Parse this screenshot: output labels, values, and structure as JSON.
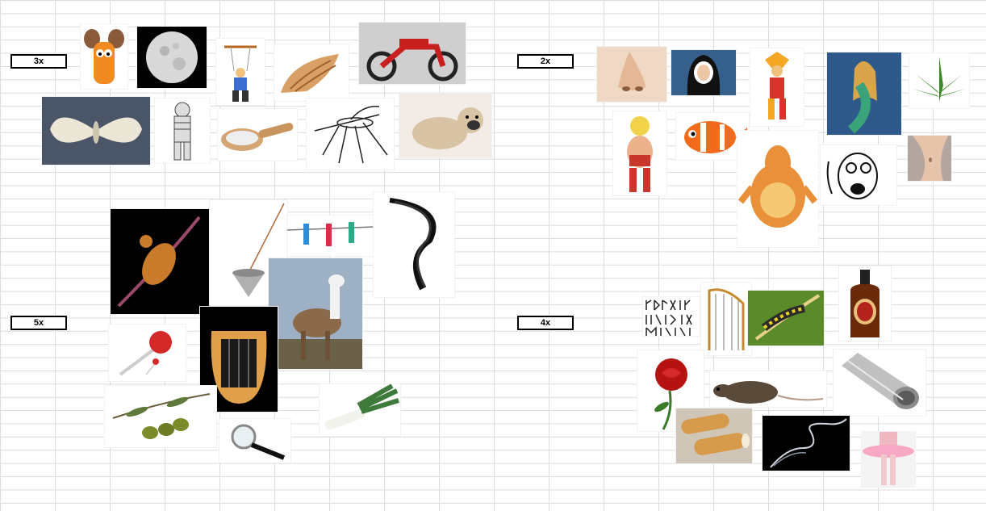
{
  "labels": {
    "three": "3x",
    "two": "2x",
    "five": "5x",
    "four": "4x"
  },
  "images": [
    "cartoon-mouse-icon",
    "full-moon-icon",
    "marionette-icon",
    "seashell-icon",
    "moped-icon",
    "moth-icon",
    "mummy-icon",
    "wooden-scoop-icon",
    "mosquito-icon",
    "pug-dog-icon",
    "louse-icon",
    "pendulum-icon",
    "clothespins-icon",
    "hair-strand-icon",
    "llama-icon",
    "lollipop-icon",
    "lyre-icon",
    "olives-icon",
    "magnifying-glass-icon",
    "leek-icon",
    "nose-icon",
    "nun-icon",
    "jester-icon",
    "mermaid-icon",
    "cannabis-leaf-icon",
    "cartoon-woman-icon",
    "clownfish-icon",
    "cartoon-animal-icon",
    "shocked-face-icon",
    "belly-icon",
    "runes-icon",
    "harp-icon",
    "caterpillar-icon",
    "rum-bottle-icon",
    "rose-icon",
    "rat-icon",
    "metal-tube-icon",
    "cannoli-icon",
    "smoke-icon",
    "tutu-icon"
  ]
}
